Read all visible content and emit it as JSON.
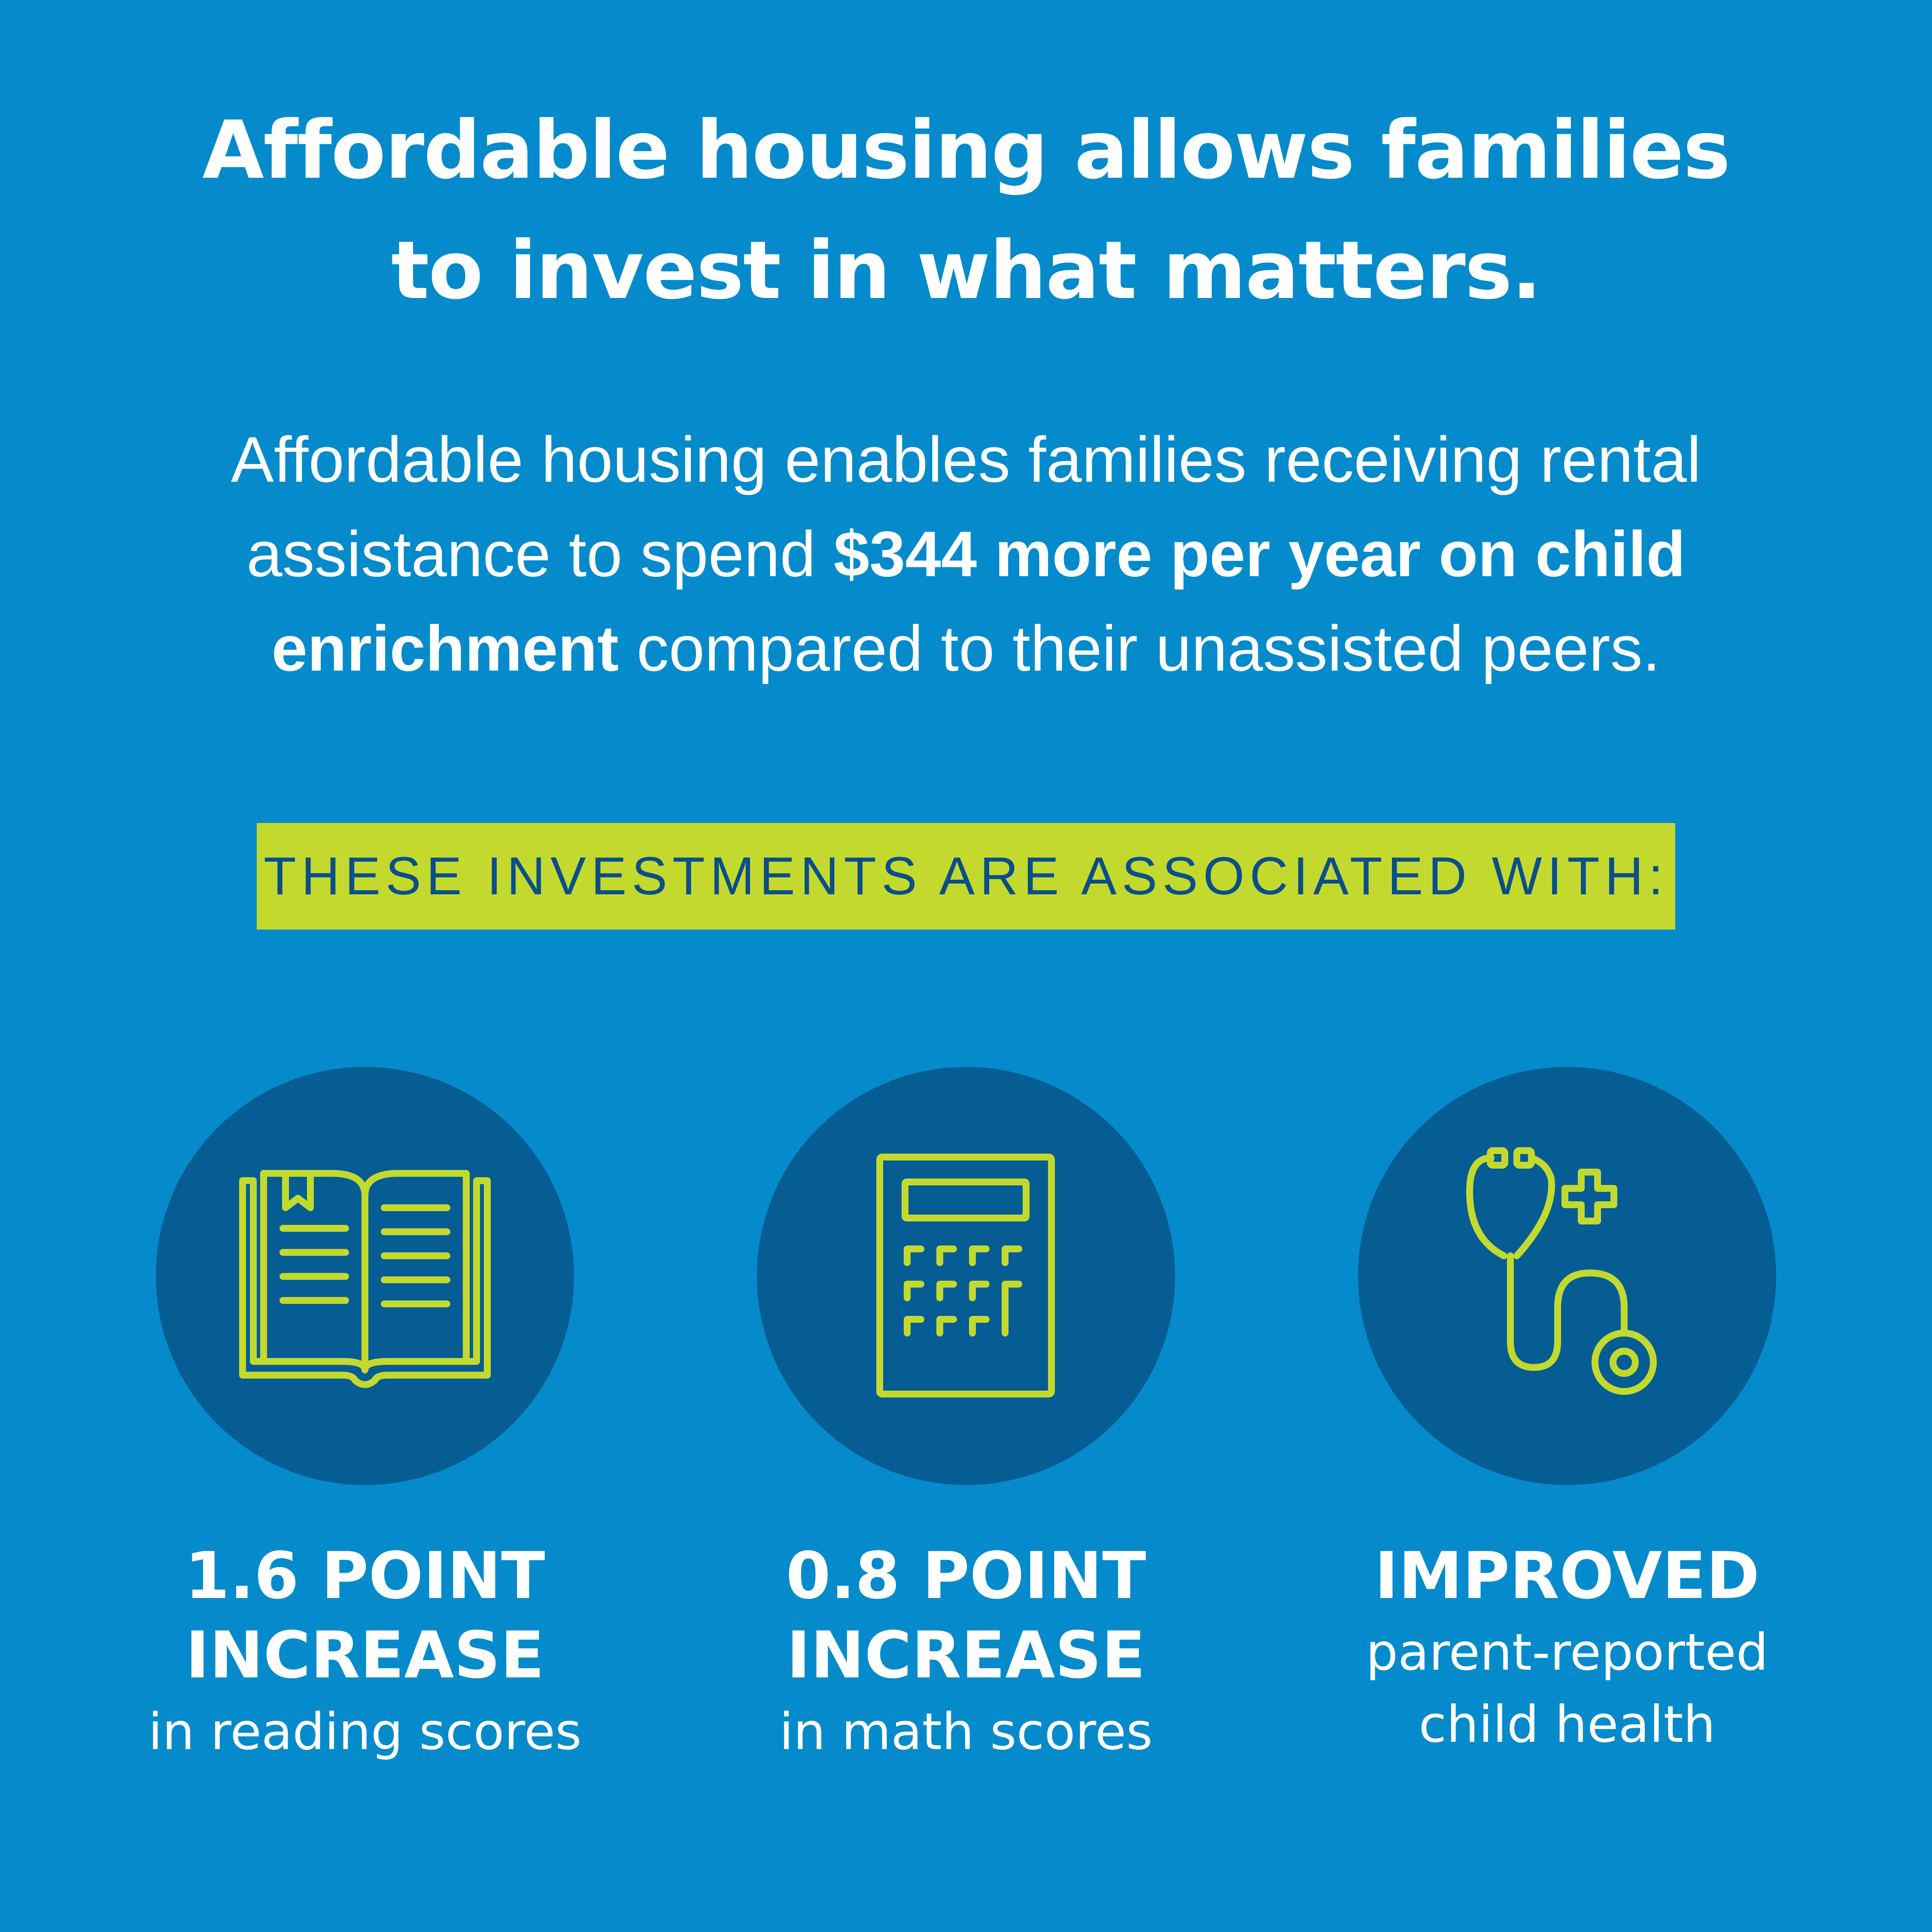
{
  "headline": {
    "line1": "Affordable housing allows families",
    "line2": "to invest in what matters."
  },
  "intro": {
    "text_before": "Affordable housing enables families receiving rental assistance to spend ",
    "highlight": "$344 more per year on child enrichment",
    "text_after": " compared to their unassisted peers."
  },
  "banner": {
    "label": "THESE INVESTMENTS ARE ASSOCIATED WITH:"
  },
  "stats": [
    {
      "icon": "book-icon",
      "line1": "1.6 POINT",
      "line2": "INCREASE",
      "line3": "in reading scores"
    },
    {
      "icon": "calculator-icon",
      "line1": "0.8 POINT",
      "line2": "INCREASE",
      "line3": "in math scores"
    },
    {
      "icon": "stethoscope-icon",
      "line1": "IMPROVED",
      "line2": "parent-reported",
      "line3": "child health"
    }
  ],
  "colors": {
    "background": "#058bcc",
    "circle": "#055d94",
    "accent": "#c4d92e",
    "banner_text": "#0a4f8a",
    "text": "#ffffff"
  }
}
